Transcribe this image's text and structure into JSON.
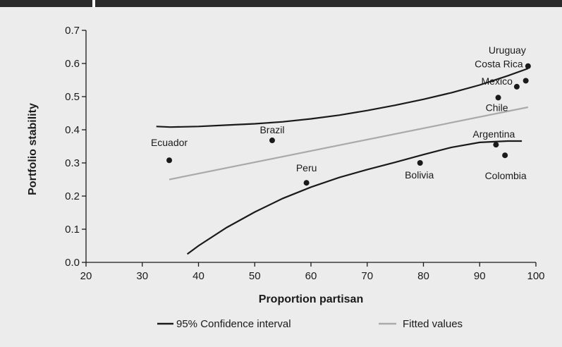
{
  "chart_data": {
    "type": "scatter",
    "xlabel": "Proportion partisan",
    "ylabel": "Portfolio stability",
    "xlim": [
      20,
      100
    ],
    "ylim": [
      0,
      0.7
    ],
    "xticks": [
      "20",
      "30",
      "40",
      "50",
      "60",
      "70",
      "80",
      "90",
      "100"
    ],
    "yticks": [
      "0.0",
      "0.1",
      "0.2",
      "0.3",
      "0.4",
      "0.5",
      "0.6",
      "0.7"
    ],
    "grid": false,
    "points": [
      {
        "label": "Ecuador",
        "x": 34.8,
        "y": 0.308
      },
      {
        "label": "Brazil",
        "x": 53.1,
        "y": 0.368
      },
      {
        "label": "Peru",
        "x": 59.2,
        "y": 0.24
      },
      {
        "label": "Bolivia",
        "x": 79.4,
        "y": 0.3
      },
      {
        "label": "Argentina",
        "x": 92.9,
        "y": 0.355
      },
      {
        "label": "Colombia",
        "x": 94.5,
        "y": 0.323
      },
      {
        "label": "Chile",
        "x": 93.3,
        "y": 0.497
      },
      {
        "label": "Mexico",
        "x": 96.6,
        "y": 0.53
      },
      {
        "label": "Costa Rica",
        "x": 98.2,
        "y": 0.548
      },
      {
        "label": "Uruguay",
        "x": 98.6,
        "y": 0.592
      }
    ],
    "series": [
      {
        "name": "95% Confidence interval",
        "color": "#1a1a1a",
        "upper": {
          "x": [
            32.5,
            35,
            40,
            45,
            50,
            55,
            60,
            65,
            70,
            75,
            80,
            85,
            90,
            95,
            98.6
          ],
          "y": [
            0.41,
            0.408,
            0.41,
            0.414,
            0.418,
            0.424,
            0.433,
            0.444,
            0.458,
            0.474,
            0.492,
            0.512,
            0.535,
            0.563,
            0.585
          ]
        },
        "lower": {
          "x": [
            38,
            40,
            45,
            50,
            55,
            60,
            65,
            70,
            75,
            80,
            85,
            90,
            95,
            97.5
          ],
          "y": [
            0.025,
            0.05,
            0.105,
            0.152,
            0.193,
            0.227,
            0.256,
            0.28,
            0.302,
            0.325,
            0.347,
            0.362,
            0.366,
            0.366
          ]
        }
      },
      {
        "name": "Fitted values",
        "color": "#aaaaaa",
        "x": [
          34.8,
          98.6
        ],
        "y": [
          0.25,
          0.468
        ]
      }
    ],
    "legend": {
      "placement": "bottom",
      "entries": [
        "95% Confidence interval",
        "Fitted values"
      ]
    }
  }
}
